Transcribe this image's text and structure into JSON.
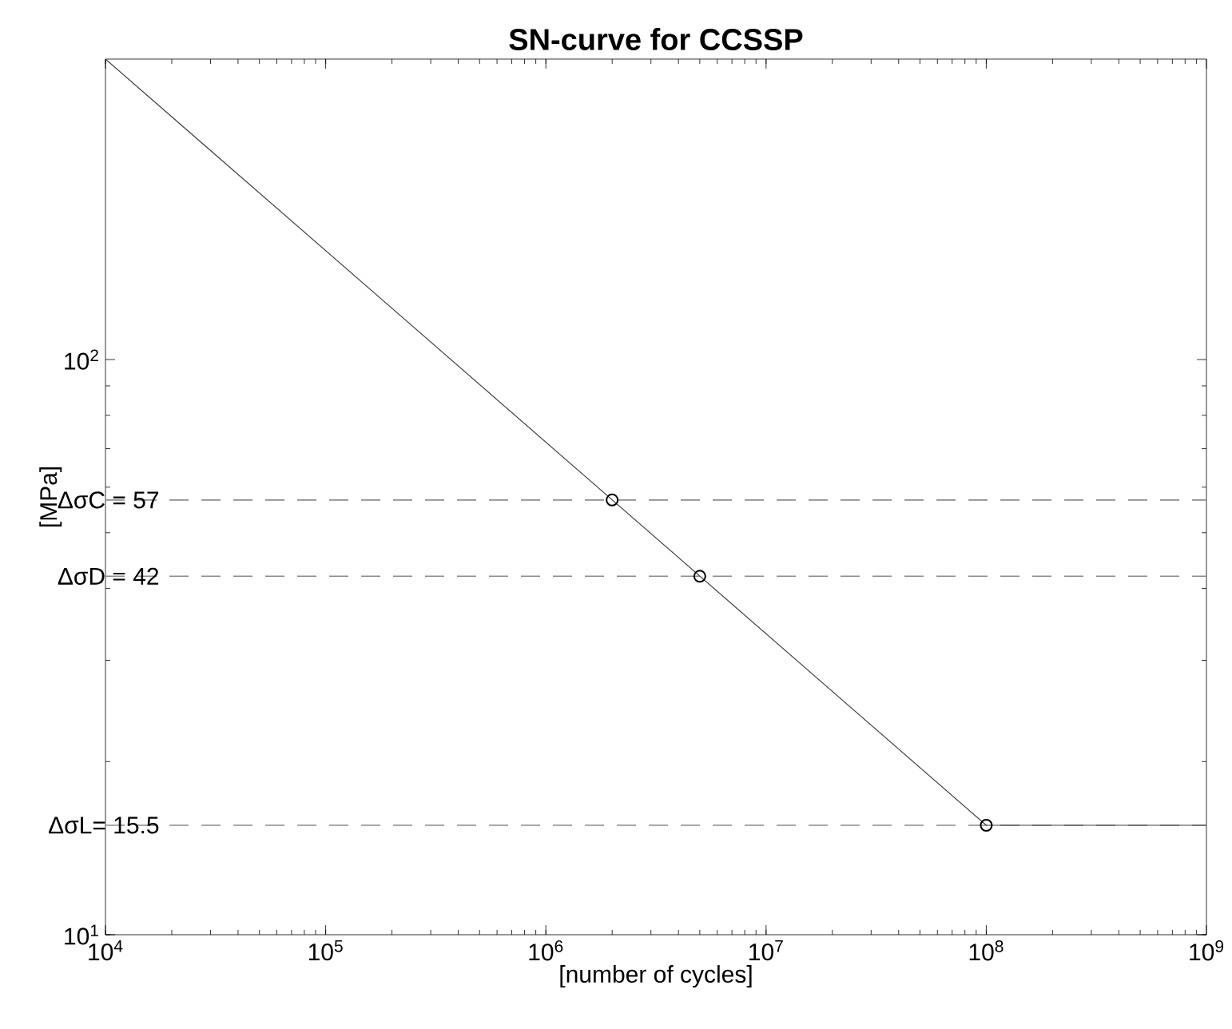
{
  "chart_data": {
    "type": "line",
    "title": "SN-curve for CCSSP",
    "xlabel": "[number of cycles]",
    "ylabel": "[MPa]",
    "log": "xy",
    "xlim": [
      10000,
      1000000000
    ],
    "ylim": [
      10,
      333
    ],
    "xticks": [
      {
        "value": 10000,
        "label": "10$^{4}$"
      },
      {
        "value": 100000,
        "label": "10$^{5}$"
      },
      {
        "value": 1000000,
        "label": "10$^{6}$"
      },
      {
        "value": 10000000,
        "label": "10$^{7}$"
      },
      {
        "value": 100000000,
        "label": "10$^{8}$"
      },
      {
        "value": 1000000000,
        "label": "10$^{9}$"
      }
    ],
    "yticks": [
      {
        "value": 10,
        "label": "10$^{1}$"
      },
      {
        "value": 100,
        "label": "10$^{2}$"
      }
    ],
    "series": [
      {
        "type": "line",
        "color": "#404040",
        "marker": "none",
        "line_style": "solid",
        "x": [
          10000,
          100000000,
          1000000000
        ],
        "values": [
          333,
          15.5,
          15.5
        ]
      },
      {
        "type": "scatter",
        "color": "#000000",
        "marker": "circle",
        "x": [
          2000000,
          5000000,
          100000000
        ],
        "values": [
          57,
          42,
          15.5
        ]
      }
    ],
    "ref_lines": [
      {
        "axis": "y",
        "value": 57,
        "label": "ΔσC = 57",
        "color": "#8c8c8c",
        "line_style": "dashed"
      },
      {
        "axis": "y",
        "value": 42,
        "label": "ΔσD = 42",
        "color": "#8c8c8c",
        "line_style": "dashed"
      },
      {
        "axis": "y",
        "value": 15.5,
        "label": "ΔσL= 15.5",
        "color": "#8c8c8c",
        "line_style": "dashed"
      }
    ]
  }
}
